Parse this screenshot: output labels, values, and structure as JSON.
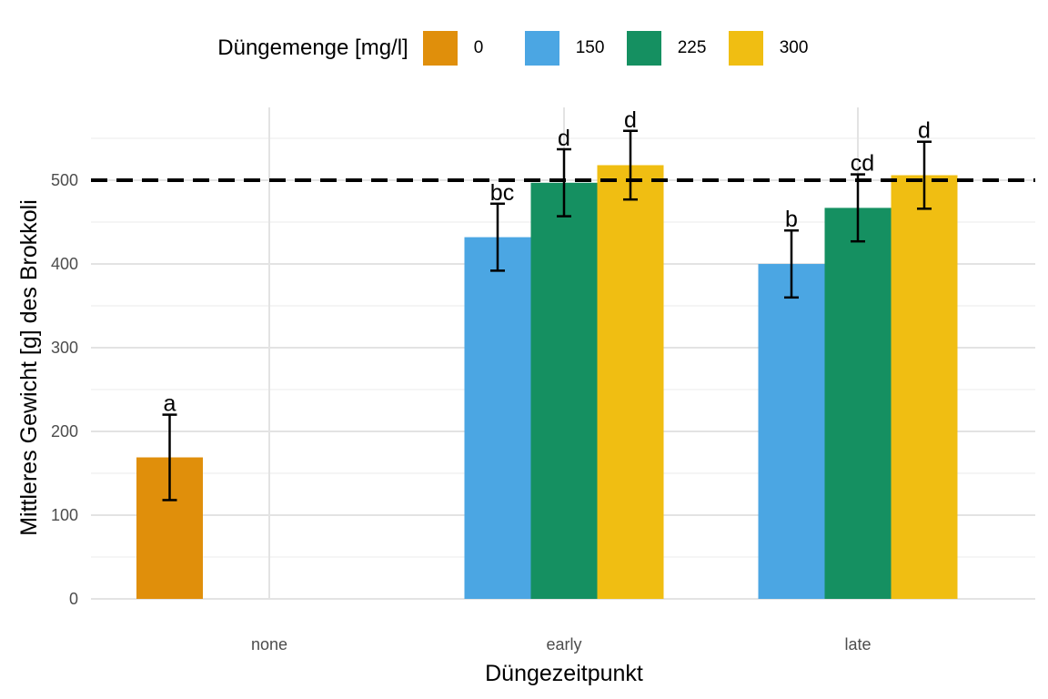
{
  "chart_data": {
    "type": "bar",
    "xlabel": "Düngezeitpunkt",
    "ylabel": "Mittleres Gewicht [g] des Brokkoli",
    "ylim": [
      0,
      580
    ],
    "y_ticks": [
      0,
      100,
      200,
      300,
      400,
      500
    ],
    "categories": [
      "none",
      "early",
      "late"
    ],
    "legend": {
      "title": "Düngemenge [mg/l]",
      "position": "top",
      "entries": [
        {
          "label": "0",
          "color": "#E08F0B"
        },
        {
          "label": "150",
          "color": "#4BA6E3"
        },
        {
          "label": "225",
          "color": "#159061"
        },
        {
          "label": "300",
          "color": "#F0BE12"
        }
      ]
    },
    "reference_line": {
      "y": 500,
      "style": "dashed"
    },
    "grid": true,
    "series": [
      {
        "name": "0",
        "values": [
          169,
          null,
          null
        ],
        "errors": [
          51,
          null,
          null
        ],
        "letters": [
          "a",
          null,
          null
        ]
      },
      {
        "name": "150",
        "values": [
          null,
          432,
          400
        ],
        "errors": [
          null,
          40,
          40
        ],
        "letters": [
          null,
          "bc",
          "b"
        ]
      },
      {
        "name": "225",
        "values": [
          null,
          497,
          467
        ],
        "errors": [
          null,
          40,
          40
        ],
        "letters": [
          null,
          "d",
          "cd"
        ]
      },
      {
        "name": "300",
        "values": [
          null,
          518,
          506
        ],
        "errors": [
          null,
          41,
          40
        ],
        "letters": [
          null,
          "d",
          "d"
        ]
      }
    ]
  }
}
